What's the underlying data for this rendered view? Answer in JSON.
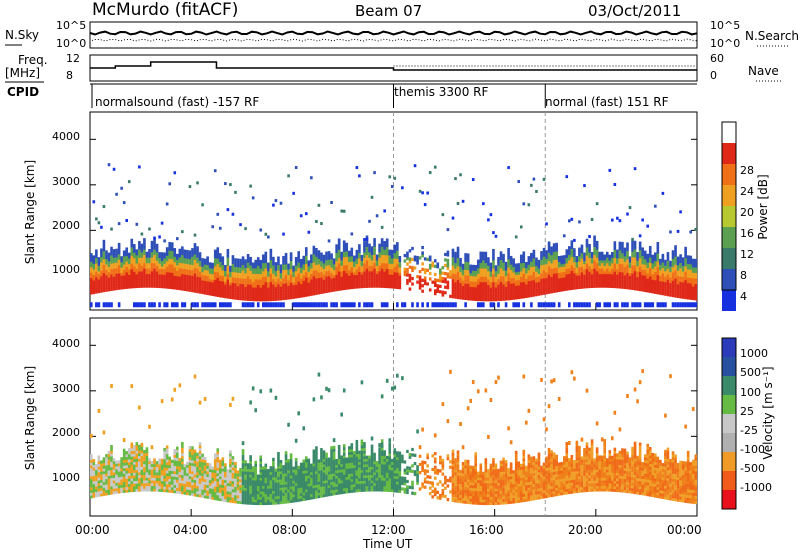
{
  "header": {
    "title": "McMurdo (fitACF)",
    "beam": "Beam 07",
    "date": "03/Oct/2011"
  },
  "top_panels": {
    "nsky_label": "N.Sky",
    "nsky_ticks": [
      "10^5",
      "10^0"
    ],
    "nsearch_label": "N.Search",
    "nsearch_ticks": [
      "10^5",
      "10^0"
    ],
    "freq_label": "Freq.",
    "freq_unit": "[MHz]",
    "freq_ticks": [
      "12",
      "8"
    ],
    "nave_label": "Nave",
    "nave_ticks": [
      "60",
      "0"
    ],
    "cpid_label": "CPID",
    "cpid_segments": [
      {
        "label": "normalsound (fast) -157 RF",
        "start_hour": 0
      },
      {
        "label": "themis 3300 RF",
        "start_hour": 12
      },
      {
        "label": "normal (fast) 151 RF",
        "start_hour": 18
      }
    ]
  },
  "colors": {
    "power_scale": [
      "#1630e0",
      "#2f4fb8",
      "#3a7a6a",
      "#5aa050",
      "#b8c830",
      "#f0a020",
      "#f07018",
      "#e02818"
    ],
    "velocity_scale": [
      "#e8101a",
      "#f05a1a",
      "#f09a28",
      "#b0b0b0",
      "#c8c8c8",
      "#66bb44",
      "#3a8a6a",
      "#2850a0",
      "#2a3ab8"
    ]
  },
  "chart_data": [
    {
      "type": "heatmap",
      "panel": "power",
      "ylabel": "Slant Range [km]",
      "yticks": [
        "1000",
        "2000",
        "3000",
        "4000"
      ],
      "ylim": [
        250,
        4600
      ],
      "colorbar_label": "Power [dB]",
      "colorbar_ticks": [
        "4",
        "8",
        "12",
        "16",
        "20",
        "24",
        "28"
      ],
      "colorbar_range": [
        0,
        32
      ]
    },
    {
      "type": "heatmap",
      "panel": "velocity",
      "ylabel": "Slant Range [km]",
      "yticks": [
        "1000",
        "2000",
        "3000",
        "4000"
      ],
      "ylim": [
        250,
        4600
      ],
      "colorbar_label": "Velocity [m s⁻¹]",
      "colorbar_ticks": [
        "1000",
        "500",
        "100",
        "25",
        "-25",
        "-100",
        "-500",
        "-1000"
      ]
    }
  ],
  "xaxis": {
    "label": "Time UT",
    "ticks": [
      "00:00",
      "04:00",
      "08:00",
      "12:00",
      "16:00",
      "20:00",
      "00:00"
    ]
  }
}
